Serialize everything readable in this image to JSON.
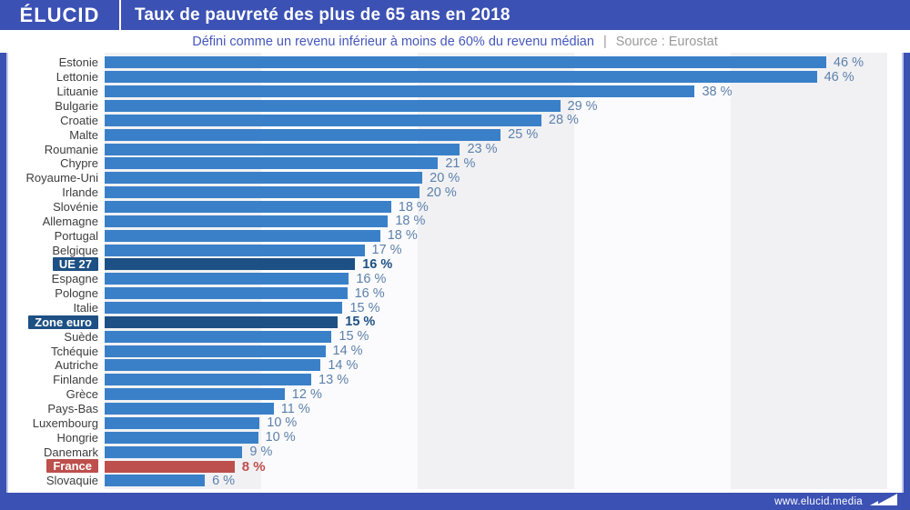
{
  "header": {
    "logo": "ÉLUCID",
    "title": "Taux de pauvreté des plus de 65 ans en 2018"
  },
  "subtitle": {
    "definition": "Défini comme un revenu inférieur à moins de 60% du revenu médian",
    "separator": "|",
    "source": "Source : Eurostat"
  },
  "footer": {
    "website": "www.elucid.media",
    "logo_icon": "elucid-flag-icon"
  },
  "colors": {
    "brand": "#3b51b4",
    "bar": "#3a80c8",
    "navy": "#1d5084",
    "red": "#bd4f4c",
    "value": "#5c80aa",
    "label": "#3d3d3d",
    "sub_blue": "#4456bb",
    "sub_gray": "#9a9a9a",
    "band_dark": "#f1f1f4",
    "band_light": "#fbfbfd"
  },
  "chart_data": {
    "type": "bar",
    "orientation": "horizontal",
    "title": "Taux de pauvreté des plus de 65 ans en 2018",
    "subtitle": "Défini comme un revenu inférieur à moins de 60% du revenu médian",
    "source": "Eurostat",
    "unit": "%",
    "xlim": [
      0,
      50
    ],
    "grid_band_interval": 10,
    "legend": "none",
    "categories": [
      "Estonie",
      "Lettonie",
      "Lituanie",
      "Bulgarie",
      "Croatie",
      "Malte",
      "Roumanie",
      "Chypre",
      "Royaume-Uni",
      "Irlande",
      "Slovénie",
      "Allemagne",
      "Portugal",
      "Belgique",
      "UE 27",
      "Espagne",
      "Pologne",
      "Italie",
      "Zone euro",
      "Suède",
      "Tchéquie",
      "Autriche",
      "Finlande",
      "Grèce",
      "Pays-Bas",
      "Luxembourg",
      "Hongrie",
      "Danemark",
      "France",
      "Slovaquie"
    ],
    "values": [
      46,
      46,
      38,
      29,
      28,
      25,
      23,
      21,
      20,
      20,
      18,
      18,
      18,
      17,
      16,
      16,
      16,
      15,
      15,
      15,
      14,
      14,
      13,
      12,
      11,
      10,
      10,
      9,
      8,
      6
    ],
    "labels": [
      "46 %",
      "46 %",
      "38 %",
      "29 %",
      "28 %",
      "25 %",
      "23 %",
      "21 %",
      "20 %",
      "20 %",
      "18 %",
      "18 %",
      "18 %",
      "17 %",
      "16 %",
      "16 %",
      "16 %",
      "15 %",
      "15 %",
      "15 %",
      "14 %",
      "14 %",
      "13 %",
      "12 %",
      "11 %",
      "10 %",
      "10 %",
      "9 %",
      "8 %",
      "6 %"
    ],
    "bar_pct": [
      46.1,
      45.5,
      37.7,
      29.1,
      27.9,
      25.3,
      22.7,
      21.3,
      20.3,
      20.1,
      18.3,
      18.1,
      17.6,
      16.6,
      16.0,
      15.6,
      15.5,
      15.2,
      14.9,
      14.5,
      14.1,
      13.8,
      13.2,
      11.5,
      10.8,
      9.9,
      9.8,
      8.8,
      8.3,
      6.4
    ],
    "highlight": [
      null,
      null,
      null,
      null,
      null,
      null,
      null,
      null,
      null,
      null,
      null,
      null,
      null,
      null,
      "navy",
      null,
      null,
      null,
      "navy",
      null,
      null,
      null,
      null,
      null,
      null,
      null,
      null,
      null,
      "red",
      null
    ]
  }
}
